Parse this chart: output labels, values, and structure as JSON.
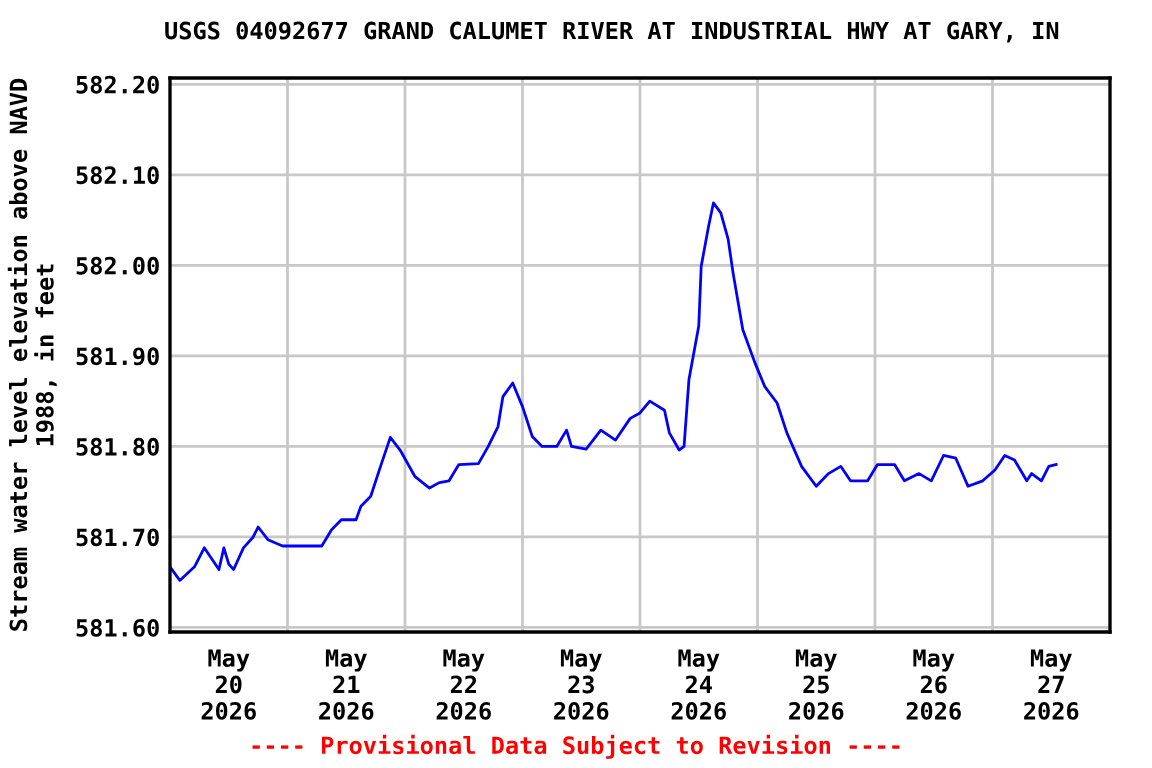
{
  "chart_data": {
    "type": "line",
    "title": "USGS 04092677 GRAND CALUMET RIVER AT INDUSTRIAL HWY AT GARY, IN",
    "ylabel": "Stream water level elevation above NAVD\n1988, in feet",
    "annotations": [
      "---- Provisional Data Subject to Revision ----"
    ],
    "x": [
      "2026-05-20T00:00",
      "2026-05-20T02:00",
      "2026-05-20T05:00",
      "2026-05-20T07:00",
      "2026-05-20T10:00",
      "2026-05-20T11:00",
      "2026-05-20T12:00",
      "2026-05-20T13:00",
      "2026-05-20T15:00",
      "2026-05-20T17:00",
      "2026-05-20T18:00",
      "2026-05-20T20:00",
      "2026-05-20T23:00",
      "2026-05-21T07:00",
      "2026-05-21T09:00",
      "2026-05-21T11:00",
      "2026-05-21T14:00",
      "2026-05-21T15:00",
      "2026-05-21T17:00",
      "2026-05-21T19:00",
      "2026-05-21T21:00",
      "2026-05-21T23:00",
      "2026-05-22T02:00",
      "2026-05-22T05:00",
      "2026-05-22T07:00",
      "2026-05-22T09:00",
      "2026-05-22T11:00",
      "2026-05-22T15:00",
      "2026-05-22T17:00",
      "2026-05-22T19:00",
      "2026-05-22T20:00",
      "2026-05-22T22:00",
      "2026-05-23T00:00",
      "2026-05-23T02:00",
      "2026-05-23T04:00",
      "2026-05-23T07:00",
      "2026-05-23T09:00",
      "2026-05-23T10:00",
      "2026-05-23T13:00",
      "2026-05-23T16:00",
      "2026-05-23T19:00",
      "2026-05-23T22:00",
      "2026-05-24T00:00",
      "2026-05-24T02:00",
      "2026-05-24T05:00",
      "2026-05-24T06:00",
      "2026-05-24T08:00",
      "2026-05-24T09:00",
      "2026-05-24T10:00",
      "2026-05-24T12:00",
      "2026-05-24T12:30",
      "2026-05-24T14:00",
      "2026-05-24T15:00",
      "2026-05-24T16:30",
      "2026-05-24T18:00",
      "2026-05-24T19:00",
      "2026-05-24T21:00",
      "2026-05-24T23:30",
      "2026-05-25T01:30",
      "2026-05-25T04:00",
      "2026-05-25T06:00",
      "2026-05-25T09:00",
      "2026-05-25T12:00",
      "2026-05-25T14:30",
      "2026-05-25T17:00",
      "2026-05-25T19:00",
      "2026-05-25T22:30",
      "2026-05-26T00:30",
      "2026-05-26T04:00",
      "2026-05-26T06:00",
      "2026-05-26T09:00",
      "2026-05-26T11:30",
      "2026-05-26T14:00",
      "2026-05-26T16:30",
      "2026-05-26T19:00",
      "2026-05-26T22:00",
      "2026-05-27T00:30",
      "2026-05-27T02:30",
      "2026-05-27T04:30",
      "2026-05-27T07:00",
      "2026-05-27T08:00",
      "2026-05-27T10:00",
      "2026-05-27T11:30",
      "2026-05-27T13:00"
    ],
    "series": [
      {
        "color": "#0000ff",
        "values": [
          581.667,
          581.652,
          581.667,
          581.688,
          581.664,
          581.688,
          581.67,
          581.664,
          581.688,
          581.7,
          581.711,
          581.697,
          581.69,
          581.69,
          581.708,
          581.719,
          581.719,
          581.734,
          581.745,
          581.778,
          581.81,
          581.796,
          581.767,
          581.754,
          581.76,
          581.762,
          581.78,
          581.781,
          581.8,
          581.822,
          581.855,
          581.87,
          581.844,
          581.811,
          581.8,
          581.8,
          581.818,
          581.8,
          581.797,
          581.818,
          581.807,
          581.831,
          581.837,
          581.85,
          581.84,
          581.815,
          581.796,
          581.8,
          581.874,
          581.933,
          581.999,
          582.043,
          582.069,
          582.058,
          582.029,
          581.992,
          581.929,
          581.892,
          581.866,
          581.848,
          581.815,
          581.778,
          581.756,
          581.77,
          581.778,
          581.762,
          581.762,
          581.78,
          581.78,
          581.762,
          581.77,
          581.762,
          581.79,
          581.787,
          581.756,
          581.762,
          581.774,
          581.79,
          581.785,
          581.762,
          581.77,
          581.762,
          581.778,
          581.78
        ]
      }
    ],
    "xlim": [
      "2026-05-20T00:00",
      "2026-05-28T00:00"
    ],
    "xticks": [
      {
        "value": "2026-05-21T00:00",
        "label": null
      },
      {
        "value": "2026-05-22T00:00",
        "label": null
      },
      {
        "value": "2026-05-23T00:00",
        "label": null
      },
      {
        "value": "2026-05-24T00:00",
        "label": null
      },
      {
        "value": "2026-05-25T00:00",
        "label": null
      },
      {
        "value": "2026-05-26T00:00",
        "label": null
      },
      {
        "value": "2026-05-27T00:00",
        "label": null
      },
      {
        "value": "2026-05-20T12:00",
        "label": "May\n20\n2026"
      },
      {
        "value": "2026-05-21T12:00",
        "label": "May\n21\n2026"
      },
      {
        "value": "2026-05-22T12:00",
        "label": "May\n22\n2026"
      },
      {
        "value": "2026-05-23T12:00",
        "label": "May\n23\n2026"
      },
      {
        "value": "2026-05-24T12:00",
        "label": "May\n24\n2026"
      },
      {
        "value": "2026-05-25T12:00",
        "label": "May\n25\n2026"
      },
      {
        "value": "2026-05-26T12:00",
        "label": "May\n26\n2026"
      },
      {
        "value": "2026-05-27T12:00",
        "label": "May\n27\n2026"
      }
    ],
    "ylim": [
      581.595,
      582.207
    ],
    "yticks": [
      {
        "value": 581.6,
        "label": "581.60"
      },
      {
        "value": 581.7,
        "label": "581.70"
      },
      {
        "value": 581.8,
        "label": "581.80"
      },
      {
        "value": 581.9,
        "label": "581.90"
      },
      {
        "value": 582.0,
        "label": "582.00"
      },
      {
        "value": 582.1,
        "label": "582.10"
      },
      {
        "value": 582.2,
        "label": "582.20"
      }
    ],
    "grid": true,
    "legend": false,
    "marker": "none",
    "line_style": "solid"
  }
}
